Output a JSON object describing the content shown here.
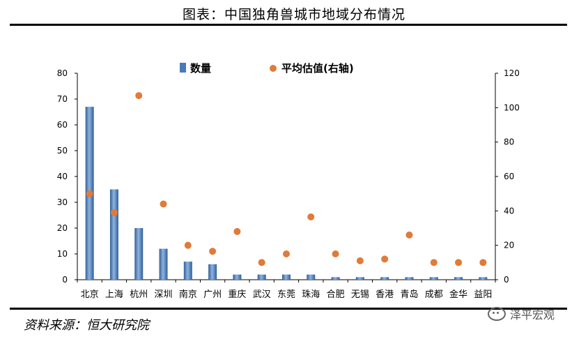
{
  "title": "图表：中国独角兽城市地域分布情况",
  "source": "资料来源：恒大研究院",
  "watermark": "泽平宏观",
  "chart_data": {
    "type": "bar",
    "categories": [
      "北京",
      "上海",
      "杭州",
      "深圳",
      "南京",
      "广州",
      "重庆",
      "武汉",
      "东莞",
      "珠海",
      "合肥",
      "无锡",
      "香港",
      "青岛",
      "成都",
      "金华",
      "益阳"
    ],
    "series": [
      {
        "name": "数量",
        "type": "bar",
        "axis": "left",
        "color": "#4a7ab8",
        "values": [
          67,
          35,
          20,
          12,
          7,
          6,
          2,
          2,
          2,
          2,
          1,
          1,
          1,
          1,
          1,
          1,
          1
        ]
      },
      {
        "name": "平均估值(右轴)",
        "type": "scatter",
        "axis": "right",
        "color": "#e07b39",
        "values": [
          50,
          39,
          107,
          44,
          20,
          16.5,
          28,
          10,
          15,
          36.5,
          15,
          11,
          12,
          26,
          10,
          10,
          10
        ]
      }
    ],
    "ylim_left": [
      0,
      80
    ],
    "yticks_left": [
      0,
      10,
      20,
      30,
      40,
      50,
      60,
      70,
      80
    ],
    "ylim_right": [
      0,
      120
    ],
    "yticks_right": [
      0,
      20,
      40,
      60,
      80,
      100,
      120
    ],
    "legend_position": "top-center",
    "grid": false
  }
}
